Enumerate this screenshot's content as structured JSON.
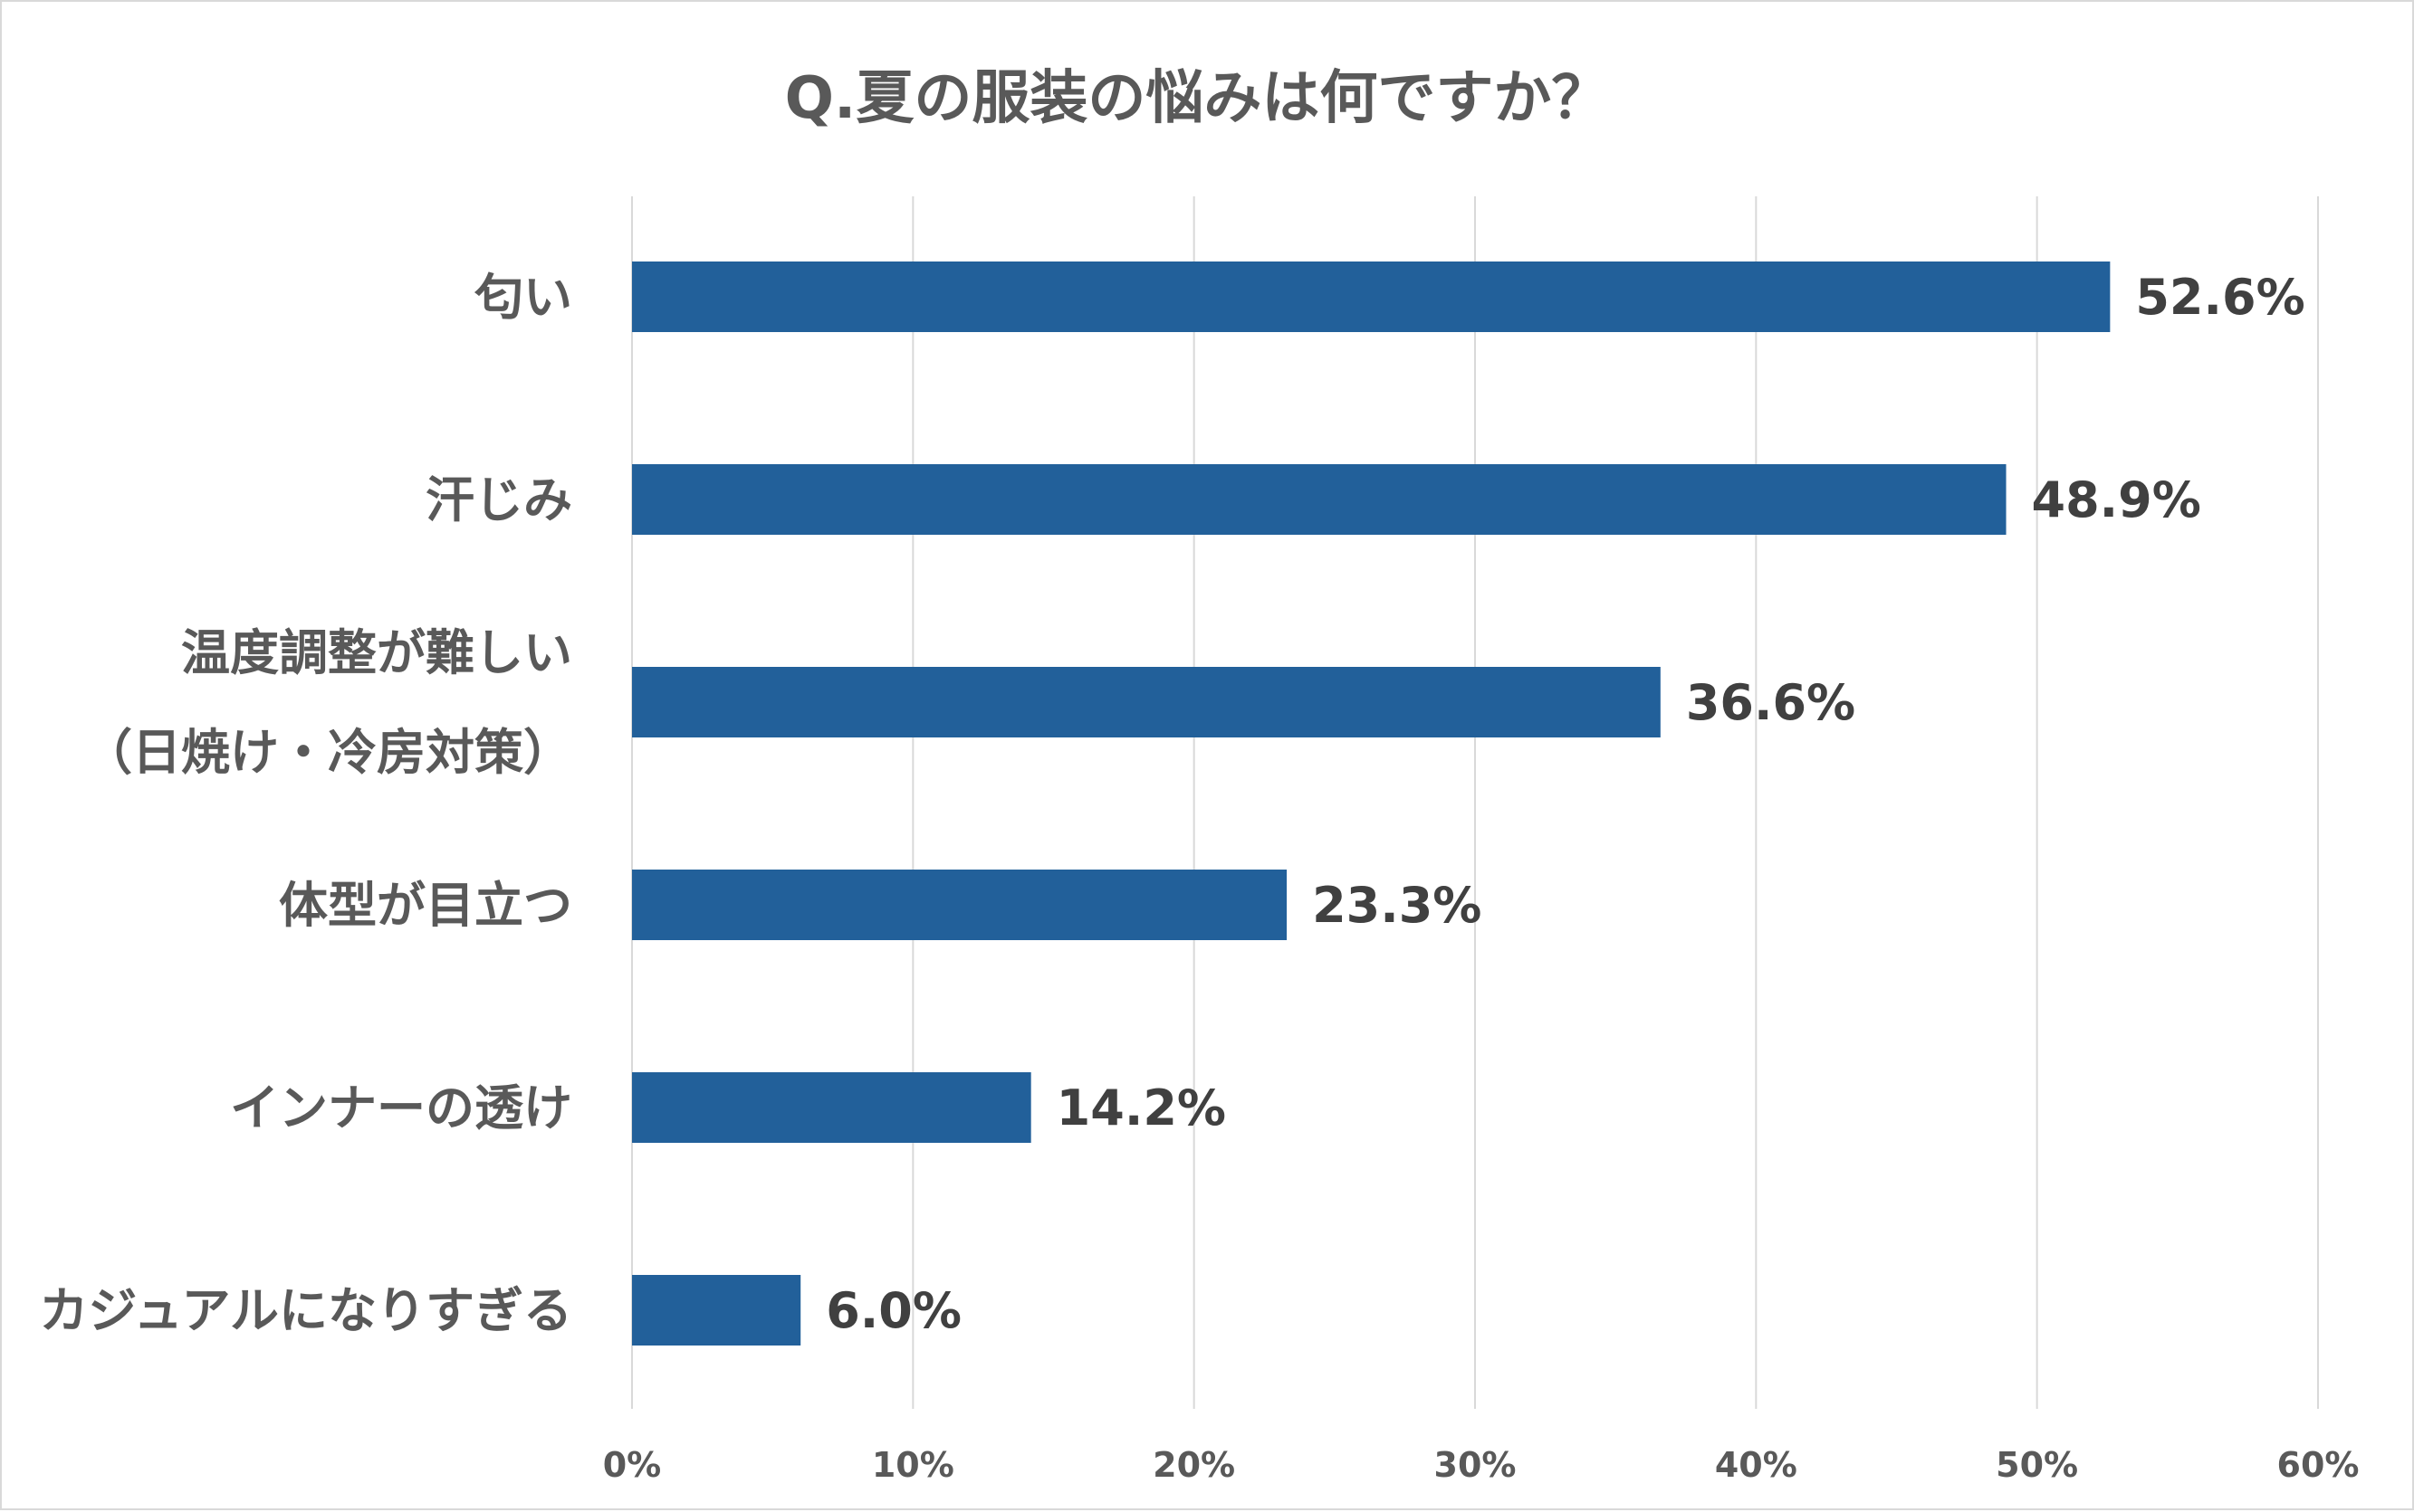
{
  "chart_data": {
    "type": "bar",
    "orientation": "horizontal",
    "title": "Q.夏の服装の悩みは何ですか？",
    "categories": [
      [
        "匂い"
      ],
      [
        "汗じみ"
      ],
      [
        "温度調整が難しい",
        "（日焼け・冷房対策）"
      ],
      [
        "体型が目立つ"
      ],
      [
        "インナーの透け"
      ],
      [
        "カジュアルになりすぎる"
      ]
    ],
    "values": [
      52.6,
      48.9,
      36.6,
      23.3,
      14.2,
      6.0
    ],
    "data_labels": [
      "52.6%",
      "48.9%",
      "36.6%",
      "23.3%",
      "14.2%",
      "6.0%"
    ],
    "xlim": [
      0,
      60
    ],
    "xticks": [
      0,
      10,
      20,
      30,
      40,
      50,
      60
    ],
    "xtick_labels": [
      "0%",
      "10%",
      "20%",
      "30%",
      "40%",
      "50%",
      "60%"
    ],
    "grid": "vertical",
    "legend": "none",
    "colors": {
      "bar": "#22609a",
      "grid": "#d9d9d9",
      "title": "#595959",
      "category": "#595959",
      "data_label": "#404040",
      "tick": "#595959"
    }
  }
}
